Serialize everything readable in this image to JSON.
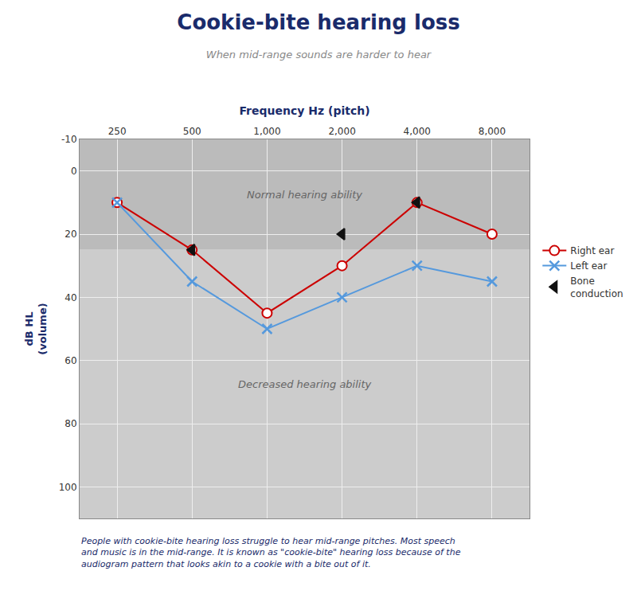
{
  "chart_data": {
    "type": "line",
    "title": "Cookie-bite hearing loss",
    "subtitle": "When mid-range sounds are harder to hear",
    "x_label": "Frequency Hz (pitch)",
    "y_label": "dB HL\n(volume)",
    "categories": [
      "250",
      "500",
      "1,000",
      "2,000",
      "4,000",
      "8,000"
    ],
    "series": [
      {
        "name": "Right ear",
        "color": "#cc0000",
        "marker": "circle-open",
        "line_style": "solid",
        "values": [
          10,
          25,
          45,
          30,
          10,
          20
        ]
      },
      {
        "name": "Left ear",
        "color": "#5599dd",
        "marker": "x",
        "line_style": "solid",
        "values": [
          10,
          35,
          50,
          40,
          30,
          35
        ]
      },
      {
        "name": "Bone\nconduction",
        "type": "scatter",
        "color": "#111111",
        "marker": "triangle-left",
        "values": [
          null,
          25,
          null,
          20,
          10,
          null
        ]
      }
    ],
    "ylim": [
      110,
      -10
    ],
    "yticks": [
      -10,
      0,
      20,
      40,
      60,
      80,
      100
    ],
    "grid": true,
    "legend": "right",
    "bands": [
      {
        "from": -10,
        "to": 25,
        "label": "Normal hearing ability",
        "color": "#bbbbbb"
      },
      {
        "from": 25,
        "to": 110,
        "label": "Decreased hearing ability",
        "color": "#cccccc"
      }
    ],
    "footer": "People with cookie-bite hearing loss struggle to hear mid-range pitches. Most speech\nand music is in the mid-range. It is known as \"cookie-bite\" hearing loss because of the\naudiogram pattern that looks akin to a cookie with a bite out of it."
  }
}
